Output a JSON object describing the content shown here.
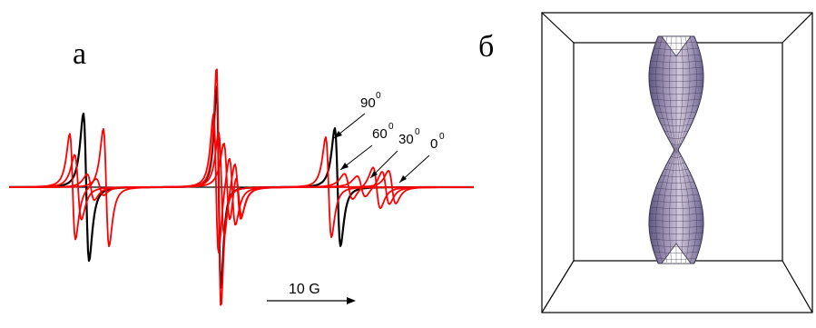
{
  "figure": {
    "panel_a_label": "а",
    "panel_b_label": "б",
    "scale_bar_label": "10 G",
    "angle_labels": [
      {
        "value": "90",
        "sup": "0"
      },
      {
        "value": "60",
        "sup": "0"
      },
      {
        "value": "30",
        "sup": "0"
      },
      {
        "value": "0",
        "sup": "0"
      }
    ],
    "colors": {
      "spectrum_primary": "#ff0000",
      "spectrum_reference": "#000000",
      "surface_fill": "#8a80a6",
      "surface_mesh": "#3a3450",
      "box": "#000000"
    }
  }
}
